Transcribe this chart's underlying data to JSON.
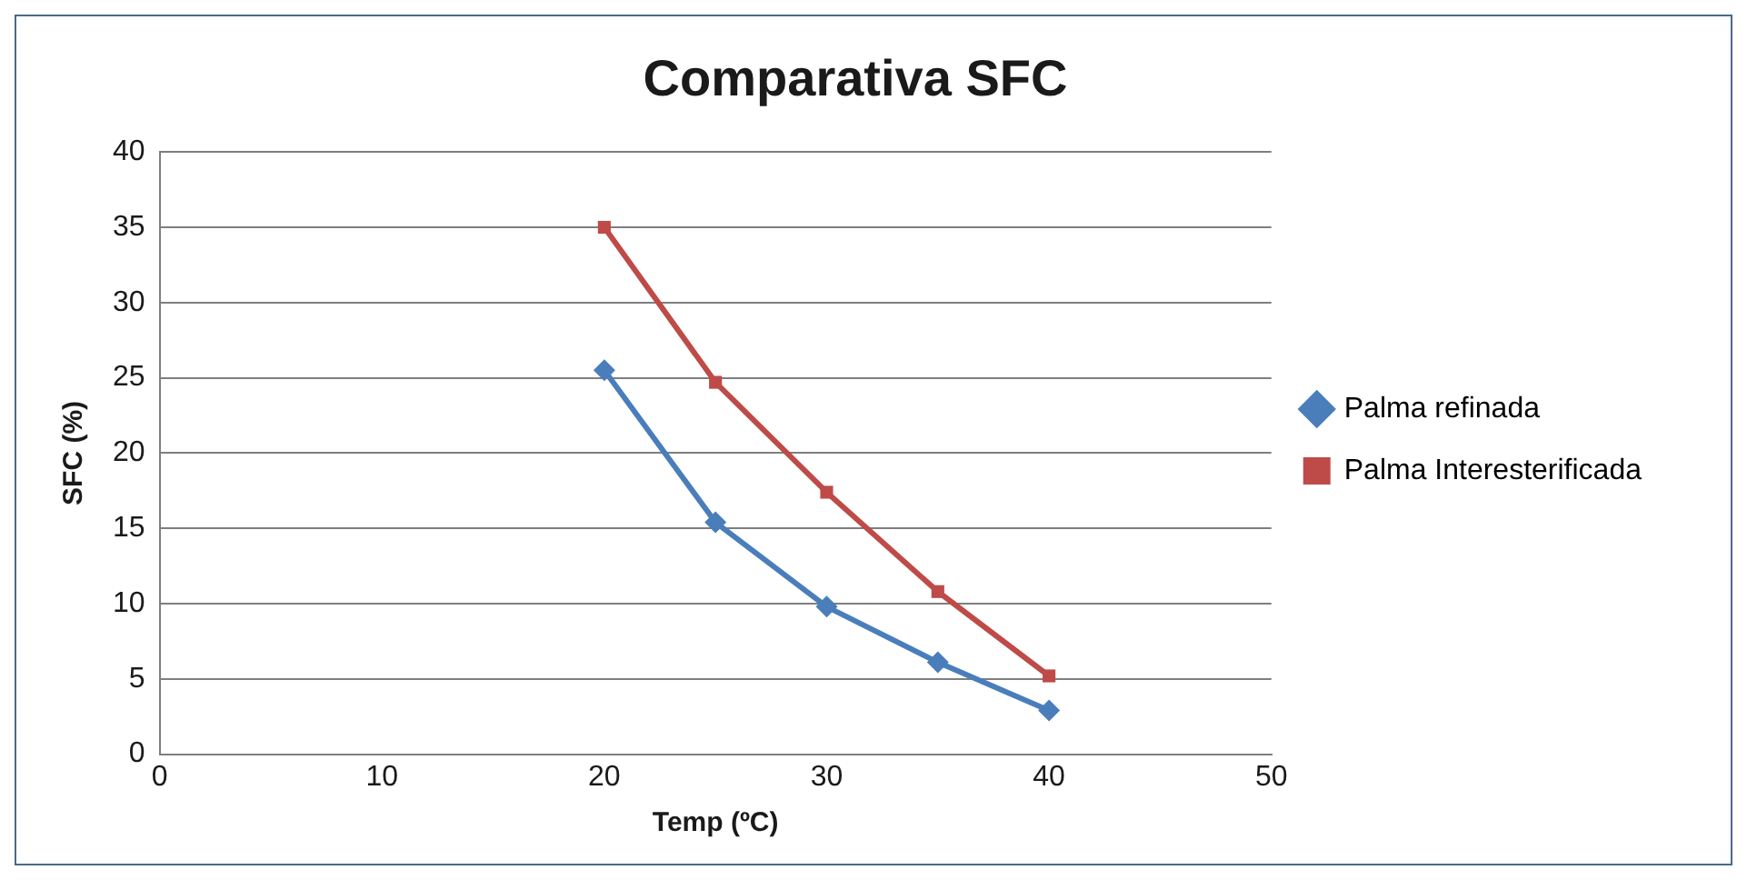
{
  "chart_data": {
    "type": "line",
    "title": "Comparativa SFC",
    "xlabel": "Temp (ºC)",
    "ylabel": "SFC (%)",
    "x": [
      20,
      25,
      30,
      35,
      40
    ],
    "series": [
      {
        "name": "Palma refinada",
        "color": "#4a7ebb",
        "marker": "diamond",
        "values": [
          25.5,
          15.4,
          9.8,
          6.1,
          2.9
        ]
      },
      {
        "name": "Palma Interesterificada",
        "color": "#be4b48",
        "marker": "square",
        "values": [
          35.0,
          24.7,
          17.4,
          10.8,
          5.2
        ]
      }
    ],
    "xlim": [
      0,
      50
    ],
    "xticks": [
      0,
      10,
      20,
      30,
      40,
      50
    ],
    "ylim": [
      0,
      40
    ],
    "yticks": [
      0,
      5,
      10,
      15,
      20,
      25,
      30,
      35,
      40
    ],
    "grid": "y",
    "legend": "right",
    "line_style": "solid"
  }
}
